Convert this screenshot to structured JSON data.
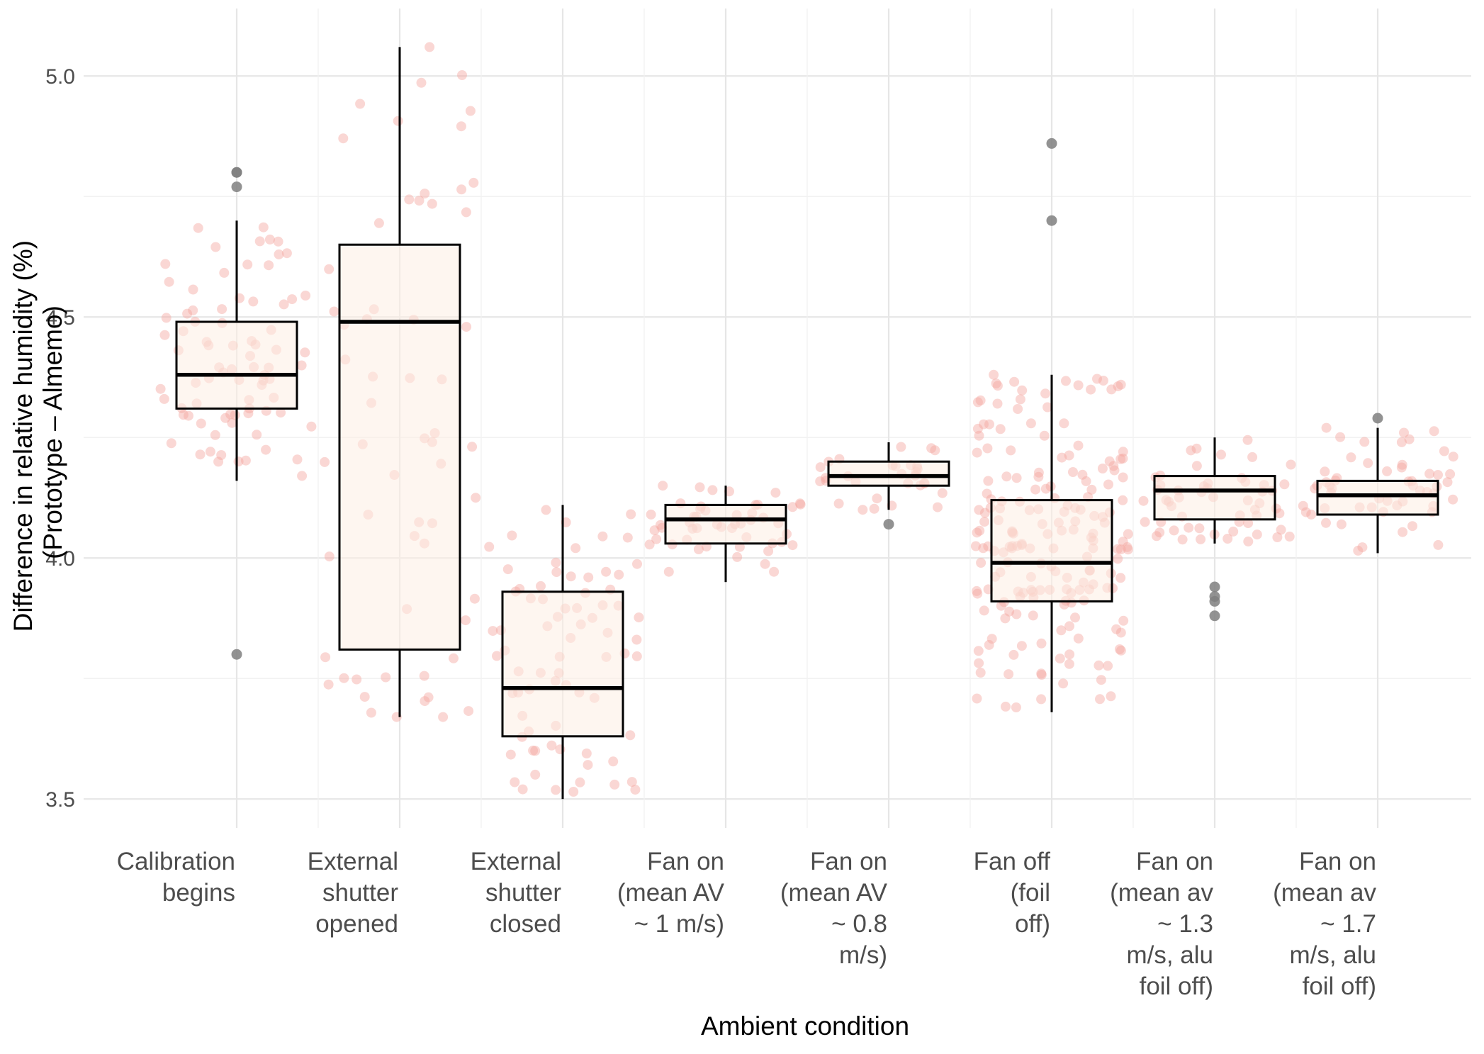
{
  "chart_data": {
    "type": "boxplot",
    "title": "",
    "xlabel": "Ambient condition",
    "ylabel": [
      "Difference in relative humidity (%)",
      "(Prototype – Almemo)"
    ],
    "ylim": [
      3.44,
      5.14
    ],
    "yticks": [
      3.5,
      4.0,
      4.5,
      5.0
    ],
    "ytick_labels": [
      "3.5",
      "4.0",
      "4.5",
      "5.0"
    ],
    "grid": true,
    "colors": {
      "box_fill": "#fdeee4",
      "box_line": "#000000",
      "jitter": "#f4a6a0",
      "outlier": "#7f7f7f"
    },
    "categories": [
      {
        "label": [
          "Calibration",
          "begins"
        ],
        "q1": 4.31,
        "median": 4.38,
        "q3": 4.49,
        "whisker_low": 4.16,
        "whisker_high": 4.7,
        "outliers": [
          3.8,
          4.77,
          4.8,
          4.8
        ],
        "n_points": 80,
        "seed": 11
      },
      {
        "label": [
          "External",
          "shutter",
          "opened"
        ],
        "q1": 3.81,
        "median": 4.49,
        "q3": 4.65,
        "whisker_low": 3.67,
        "whisker_high": 5.06,
        "outliers": [],
        "n_points": 60,
        "seed": 23
      },
      {
        "label": [
          "External",
          "shutter",
          "closed"
        ],
        "q1": 3.63,
        "median": 3.73,
        "q3": 3.93,
        "whisker_low": 3.5,
        "whisker_high": 4.11,
        "outliers": [],
        "n_points": 75,
        "seed": 37
      },
      {
        "label": [
          "Fan on",
          "(mean AV",
          "~ 1 m/s)"
        ],
        "q1": 4.03,
        "median": 4.08,
        "q3": 4.11,
        "whisker_low": 3.95,
        "whisker_high": 4.15,
        "outliers": [],
        "n_points": 50,
        "seed": 41
      },
      {
        "label": [
          "Fan on",
          "(mean AV",
          "~ 0.8",
          "m/s)"
        ],
        "q1": 4.15,
        "median": 4.17,
        "q3": 4.2,
        "whisker_low": 4.1,
        "whisker_high": 4.24,
        "outliers": [
          4.07
        ],
        "n_points": 30,
        "seed": 53
      },
      {
        "label": [
          "Fan off",
          "(foil",
          "off)"
        ],
        "q1": 3.91,
        "median": 3.99,
        "q3": 4.12,
        "whisker_low": 3.68,
        "whisker_high": 4.38,
        "outliers": [
          4.7,
          4.86
        ],
        "n_points": 190,
        "seed": 67
      },
      {
        "label": [
          "Fan on",
          "(mean av",
          "~ 1.3",
          "m/s, alu",
          "foil off)"
        ],
        "q1": 4.08,
        "median": 4.14,
        "q3": 4.17,
        "whisker_low": 4.03,
        "whisker_high": 4.25,
        "outliers": [
          3.88,
          3.91,
          3.92,
          3.94
        ],
        "n_points": 55,
        "seed": 79
      },
      {
        "label": [
          "Fan on",
          "(mean av",
          "~ 1.7",
          "m/s, alu",
          "foil off)"
        ],
        "q1": 4.09,
        "median": 4.13,
        "q3": 4.16,
        "whisker_low": 4.01,
        "whisker_high": 4.27,
        "outliers": [
          4.29
        ],
        "n_points": 55,
        "seed": 97
      }
    ]
  }
}
